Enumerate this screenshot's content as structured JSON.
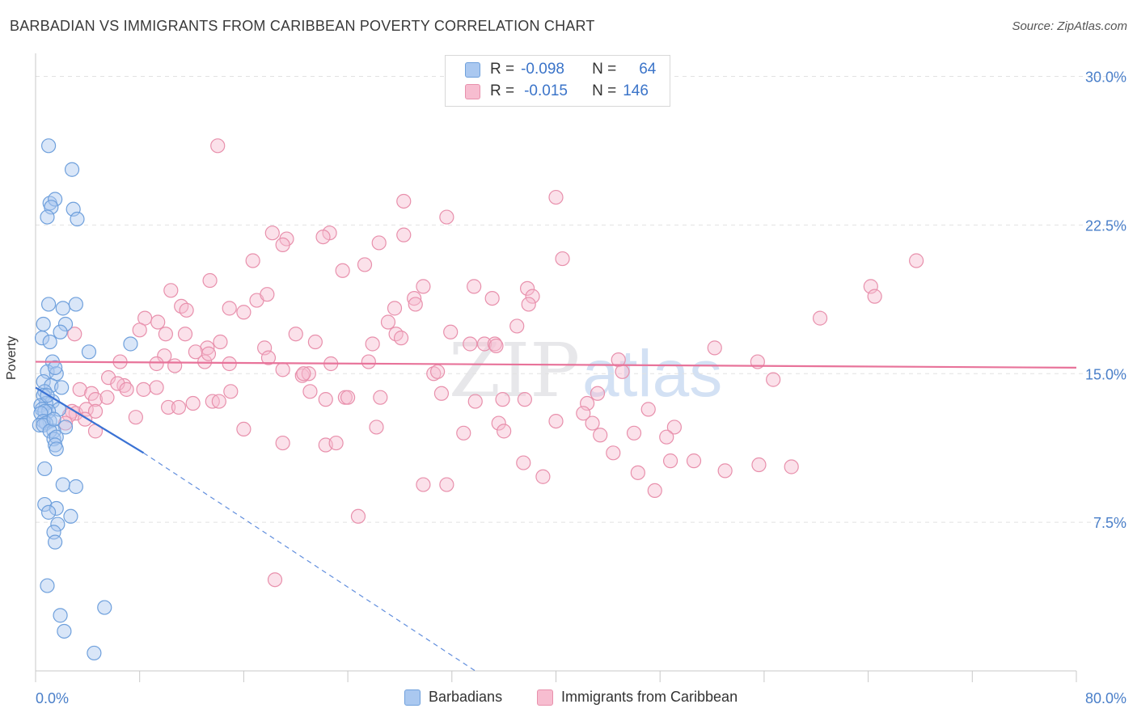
{
  "title": "BARBADIAN VS IMMIGRANTS FROM CARIBBEAN POVERTY CORRELATION CHART",
  "source": "Source: ZipAtlas.com",
  "watermark": "ZIPatlas",
  "legend_top": {
    "rows": [
      {
        "r_label": "R =",
        "r_value": "-0.098",
        "n_label": "N =",
        "n_value": "64"
      },
      {
        "r_label": "R =",
        "r_value": "-0.015",
        "n_label": "N =",
        "n_value": "146"
      }
    ]
  },
  "legend_bottom": {
    "items": [
      {
        "label": "Barbadians"
      },
      {
        "label": "Immigrants from Caribbean"
      }
    ]
  },
  "colors": {
    "blue_fill": "#aac8f0",
    "blue_stroke": "#6fa0dc",
    "blue_line": "#3a72d4",
    "pink_fill": "#f7bdd0",
    "pink_stroke": "#e890ac",
    "pink_line": "#e8739a",
    "tick_label": "#4a7fc9",
    "grid": "#e2e2e2"
  },
  "chart_data": {
    "type": "scatter",
    "title": "BARBADIAN VS IMMIGRANTS FROM CARIBBEAN POVERTY CORRELATION CHART",
    "xlabel": "",
    "ylabel": "Poverty",
    "xlim": [
      0,
      80
    ],
    "ylim": [
      0,
      31
    ],
    "x_tick_labels": [
      "0.0%",
      "80.0%"
    ],
    "y_ticks": [
      7.5,
      15.0,
      22.5,
      30.0
    ],
    "y_tick_labels": [
      "7.5%",
      "15.0%",
      "22.5%",
      "30.0%"
    ],
    "grid": "horizontal dashed",
    "series": [
      {
        "name": "Barbadians",
        "color": "blue",
        "trend": {
          "x": [
            0,
            8.3
          ],
          "y": [
            14.3,
            11.0
          ],
          "dashed_extension_to": [
            33.8,
            0
          ]
        },
        "points": [
          [
            1.0,
            26.5
          ],
          [
            2.8,
            25.3
          ],
          [
            1.1,
            23.6
          ],
          [
            1.5,
            23.8
          ],
          [
            2.9,
            23.3
          ],
          [
            1.2,
            23.4
          ],
          [
            0.9,
            22.9
          ],
          [
            3.2,
            22.8
          ],
          [
            1.0,
            18.5
          ],
          [
            2.1,
            18.3
          ],
          [
            3.1,
            18.5
          ],
          [
            0.6,
            17.5
          ],
          [
            2.3,
            17.5
          ],
          [
            0.5,
            16.8
          ],
          [
            1.9,
            17.1
          ],
          [
            1.1,
            16.6
          ],
          [
            7.3,
            16.5
          ],
          [
            4.1,
            16.1
          ],
          [
            1.3,
            15.6
          ],
          [
            0.9,
            15.1
          ],
          [
            1.6,
            15.0
          ],
          [
            1.5,
            15.3
          ],
          [
            0.6,
            14.6
          ],
          [
            1.2,
            14.4
          ],
          [
            2.0,
            14.3
          ],
          [
            0.7,
            14.1
          ],
          [
            0.6,
            13.9
          ],
          [
            1.3,
            13.6
          ],
          [
            0.8,
            13.5
          ],
          [
            0.4,
            13.4
          ],
          [
            1.8,
            13.2
          ],
          [
            0.5,
            13.2
          ],
          [
            1.0,
            13.1
          ],
          [
            0.7,
            13.1
          ],
          [
            0.4,
            13.0
          ],
          [
            1.1,
            12.6
          ],
          [
            0.6,
            12.6
          ],
          [
            0.8,
            12.5
          ],
          [
            0.3,
            12.4
          ],
          [
            2.3,
            12.3
          ],
          [
            0.6,
            12.4
          ],
          [
            1.4,
            12.1
          ],
          [
            1.1,
            12.1
          ],
          [
            1.4,
            11.7
          ],
          [
            1.6,
            11.8
          ],
          [
            1.5,
            11.4
          ],
          [
            1.6,
            11.2
          ],
          [
            0.7,
            10.2
          ],
          [
            2.1,
            9.4
          ],
          [
            3.1,
            9.3
          ],
          [
            0.7,
            8.4
          ],
          [
            1.6,
            8.2
          ],
          [
            1.0,
            8.0
          ],
          [
            2.7,
            7.8
          ],
          [
            1.7,
            7.4
          ],
          [
            1.4,
            7.0
          ],
          [
            1.5,
            6.5
          ],
          [
            0.9,
            4.3
          ],
          [
            1.9,
            2.8
          ],
          [
            5.3,
            3.2
          ],
          [
            2.2,
            2.0
          ],
          [
            4.5,
            0.9
          ],
          [
            1.4,
            12.7
          ],
          [
            0.9,
            13.9
          ]
        ]
      },
      {
        "name": "Immigrants from Caribbean",
        "color": "pink",
        "trend": {
          "x": [
            0,
            80
          ],
          "y": [
            15.6,
            15.3
          ]
        },
        "points": [
          [
            14.0,
            26.5
          ],
          [
            28.3,
            23.7
          ],
          [
            40.0,
            23.9
          ],
          [
            31.6,
            22.9
          ],
          [
            18.2,
            22.1
          ],
          [
            22.6,
            22.1
          ],
          [
            28.3,
            22.0
          ],
          [
            19.3,
            21.8
          ],
          [
            22.1,
            21.9
          ],
          [
            19.0,
            21.5
          ],
          [
            26.4,
            21.6
          ],
          [
            16.7,
            20.7
          ],
          [
            25.3,
            20.5
          ],
          [
            40.5,
            20.8
          ],
          [
            67.7,
            20.7
          ],
          [
            23.6,
            20.2
          ],
          [
            13.4,
            19.7
          ],
          [
            29.8,
            19.4
          ],
          [
            33.7,
            19.4
          ],
          [
            37.8,
            19.3
          ],
          [
            10.4,
            19.2
          ],
          [
            64.2,
            19.4
          ],
          [
            64.5,
            18.9
          ],
          [
            35.1,
            18.8
          ],
          [
            38.2,
            18.9
          ],
          [
            17.0,
            18.7
          ],
          [
            29.1,
            18.8
          ],
          [
            17.8,
            19.0
          ],
          [
            29.2,
            18.5
          ],
          [
            37.9,
            18.5
          ],
          [
            11.2,
            18.4
          ],
          [
            11.6,
            18.2
          ],
          [
            14.9,
            18.3
          ],
          [
            16.0,
            18.1
          ],
          [
            8.4,
            17.8
          ],
          [
            9.4,
            17.6
          ],
          [
            27.1,
            17.6
          ],
          [
            37.0,
            17.4
          ],
          [
            60.3,
            17.8
          ],
          [
            20.0,
            17.0
          ],
          [
            27.7,
            17.0
          ],
          [
            31.9,
            17.1
          ],
          [
            8.0,
            17.2
          ],
          [
            3.0,
            17.0
          ],
          [
            10.0,
            17.0
          ],
          [
            11.5,
            17.0
          ],
          [
            28.1,
            16.8
          ],
          [
            34.5,
            16.5
          ],
          [
            35.3,
            16.5
          ],
          [
            21.5,
            16.6
          ],
          [
            14.2,
            16.6
          ],
          [
            25.9,
            16.5
          ],
          [
            33.4,
            16.5
          ],
          [
            13.2,
            16.3
          ],
          [
            17.6,
            16.3
          ],
          [
            52.2,
            16.3
          ],
          [
            12.3,
            16.1
          ],
          [
            17.9,
            15.8
          ],
          [
            9.9,
            15.9
          ],
          [
            13.0,
            15.6
          ],
          [
            14.9,
            15.5
          ],
          [
            19.0,
            15.2
          ],
          [
            22.7,
            15.5
          ],
          [
            25.6,
            15.6
          ],
          [
            35.4,
            16.4
          ],
          [
            44.8,
            15.7
          ],
          [
            55.5,
            15.6
          ],
          [
            9.3,
            15.5
          ],
          [
            10.7,
            15.4
          ],
          [
            6.5,
            15.6
          ],
          [
            45.1,
            15.1
          ],
          [
            20.5,
            14.9
          ],
          [
            21.0,
            15.0
          ],
          [
            30.6,
            15.0
          ],
          [
            30.9,
            15.1
          ],
          [
            56.7,
            14.7
          ],
          [
            5.6,
            14.8
          ],
          [
            6.8,
            14.4
          ],
          [
            6.3,
            14.5
          ],
          [
            7.0,
            14.2
          ],
          [
            8.3,
            14.2
          ],
          [
            3.4,
            14.2
          ],
          [
            4.3,
            14.0
          ],
          [
            15.0,
            14.1
          ],
          [
            21.1,
            14.1
          ],
          [
            31.2,
            14.0
          ],
          [
            43.2,
            14.0
          ],
          [
            4.6,
            13.7
          ],
          [
            5.5,
            13.8
          ],
          [
            12.1,
            13.5
          ],
          [
            13.6,
            13.6
          ],
          [
            14.1,
            13.6
          ],
          [
            22.3,
            13.7
          ],
          [
            23.8,
            13.8
          ],
          [
            26.5,
            13.8
          ],
          [
            33.8,
            13.6
          ],
          [
            35.9,
            13.7
          ],
          [
            37.6,
            13.7
          ],
          [
            42.4,
            13.5
          ],
          [
            47.1,
            13.2
          ],
          [
            10.2,
            13.3
          ],
          [
            2.8,
            13.1
          ],
          [
            3.1,
            13.0
          ],
          [
            2.6,
            12.9
          ],
          [
            3.9,
            13.2
          ],
          [
            4.6,
            13.1
          ],
          [
            7.7,
            12.8
          ],
          [
            2.3,
            12.5
          ],
          [
            3.8,
            12.7
          ],
          [
            35.6,
            12.5
          ],
          [
            42.8,
            12.5
          ],
          [
            49.1,
            12.3
          ],
          [
            16.0,
            12.2
          ],
          [
            26.2,
            12.3
          ],
          [
            4.6,
            12.1
          ],
          [
            36.0,
            12.1
          ],
          [
            32.9,
            12.0
          ],
          [
            43.4,
            11.9
          ],
          [
            46.0,
            12.0
          ],
          [
            48.5,
            11.8
          ],
          [
            19.0,
            11.5
          ],
          [
            22.3,
            11.4
          ],
          [
            23.1,
            11.5
          ],
          [
            44.4,
            11.0
          ],
          [
            37.5,
            10.5
          ],
          [
            48.8,
            10.6
          ],
          [
            50.6,
            10.6
          ],
          [
            53.0,
            10.1
          ],
          [
            55.6,
            10.4
          ],
          [
            58.1,
            10.3
          ],
          [
            39.0,
            9.8
          ],
          [
            46.3,
            10.0
          ],
          [
            29.8,
            9.4
          ],
          [
            31.6,
            9.4
          ],
          [
            47.6,
            9.1
          ],
          [
            24.8,
            7.8
          ],
          [
            18.4,
            4.6
          ],
          [
            40.0,
            12.6
          ],
          [
            20.6,
            15.0
          ],
          [
            9.3,
            14.3
          ],
          [
            11.0,
            13.3
          ],
          [
            27.6,
            18.3
          ],
          [
            24.0,
            13.8
          ],
          [
            42.1,
            13.0
          ],
          [
            13.3,
            16.0
          ]
        ]
      }
    ]
  }
}
